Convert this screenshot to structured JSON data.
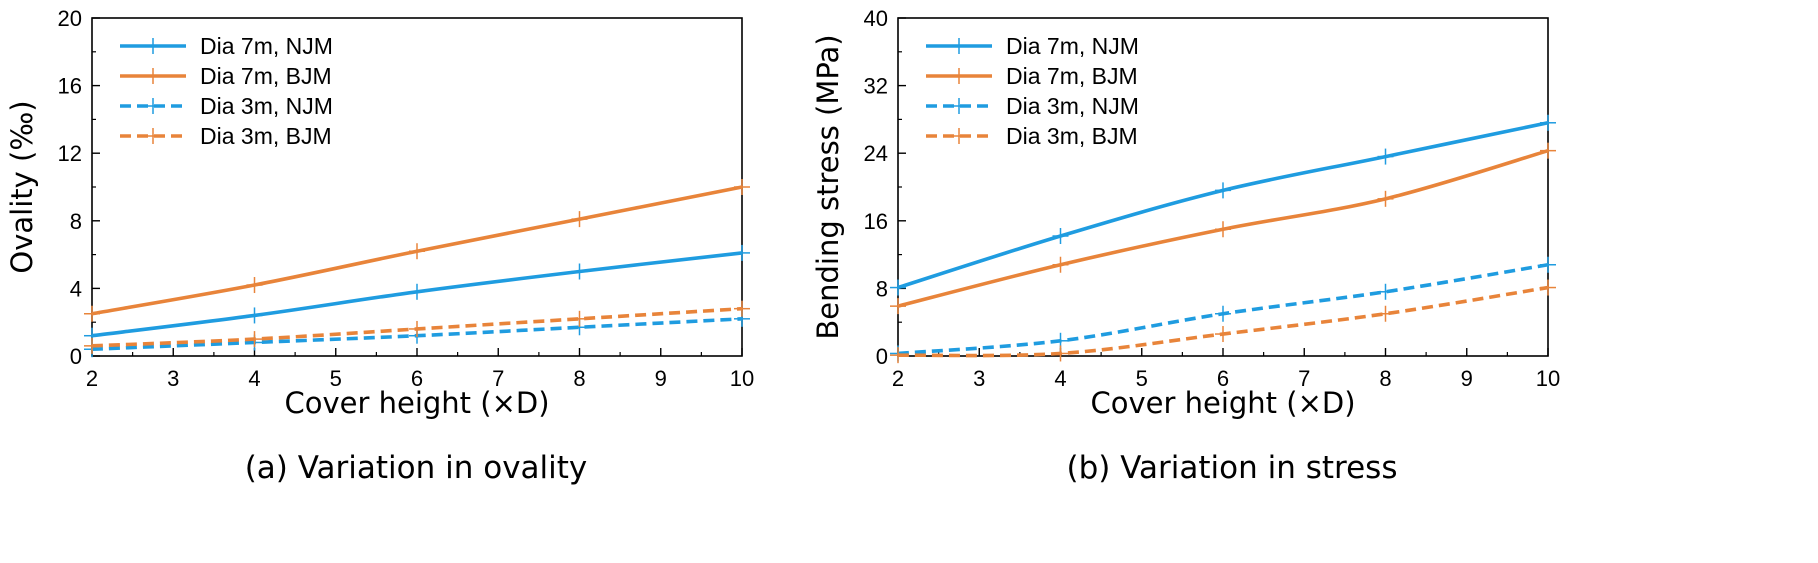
{
  "chart_data": [
    {
      "type": "line",
      "caption": "(a) Variation in ovality",
      "xlabel": "Cover height (×D)",
      "ylabel": "Ovality (‰)",
      "xlim": [
        2,
        10
      ],
      "ylim": [
        0,
        20
      ],
      "xticks": [
        2,
        3,
        4,
        5,
        6,
        7,
        8,
        9,
        10
      ],
      "yticks": [
        0,
        4,
        8,
        12,
        16,
        20
      ],
      "legend_position": "top-left",
      "series": [
        {
          "name": "Dia 7m,  NJM",
          "color": "#1f9ce0",
          "dash": false,
          "x": [
            2,
            4,
            6,
            8,
            10
          ],
          "y": [
            1.2,
            2.4,
            3.8,
            5.0,
            6.1
          ]
        },
        {
          "name": "Dia 7m,  BJM",
          "color": "#e8843a",
          "dash": false,
          "x": [
            2,
            4,
            6,
            8,
            10
          ],
          "y": [
            2.5,
            4.2,
            6.2,
            8.1,
            10.0
          ]
        },
        {
          "name": "Dia 3m,  NJM",
          "color": "#1f9ce0",
          "dash": true,
          "x": [
            2,
            4,
            6,
            8,
            10
          ],
          "y": [
            0.4,
            0.8,
            1.2,
            1.7,
            2.2
          ]
        },
        {
          "name": "Dia 3m,  BJM",
          "color": "#e8843a",
          "dash": true,
          "x": [
            2,
            4,
            6,
            8,
            10
          ],
          "y": [
            0.6,
            1.0,
            1.6,
            2.2,
            2.8
          ]
        }
      ]
    },
    {
      "type": "line",
      "caption": "(b) Variation in stress",
      "xlabel": "Cover height (×D)",
      "ylabel": "Bending stress (MPa)",
      "xlim": [
        2,
        10
      ],
      "ylim": [
        0,
        40
      ],
      "xticks": [
        2,
        3,
        4,
        5,
        6,
        7,
        8,
        9,
        10
      ],
      "yticks": [
        0,
        8,
        16,
        24,
        32,
        40
      ],
      "legend_position": "top-left",
      "series": [
        {
          "name": "Dia 7m,  NJM",
          "color": "#1f9ce0",
          "dash": false,
          "x": [
            2,
            4,
            6,
            8,
            10
          ],
          "y": [
            8.1,
            14.2,
            19.6,
            23.6,
            27.6
          ]
        },
        {
          "name": "Dia 7m,  BJM",
          "color": "#e8843a",
          "dash": false,
          "x": [
            2,
            4,
            6,
            8,
            10
          ],
          "y": [
            5.9,
            10.8,
            15.0,
            18.6,
            24.3
          ]
        },
        {
          "name": "Dia 3m,  NJM",
          "color": "#1f9ce0",
          "dash": true,
          "x": [
            2,
            4,
            6,
            8,
            10
          ],
          "y": [
            0.3,
            1.8,
            5.0,
            7.6,
            10.8
          ]
        },
        {
          "name": "Dia 3m,  BJM",
          "color": "#e8843a",
          "dash": true,
          "x": [
            2,
            4,
            6,
            8,
            10
          ],
          "y": [
            0.1,
            0.3,
            2.6,
            5.0,
            8.1
          ]
        }
      ]
    }
  ]
}
